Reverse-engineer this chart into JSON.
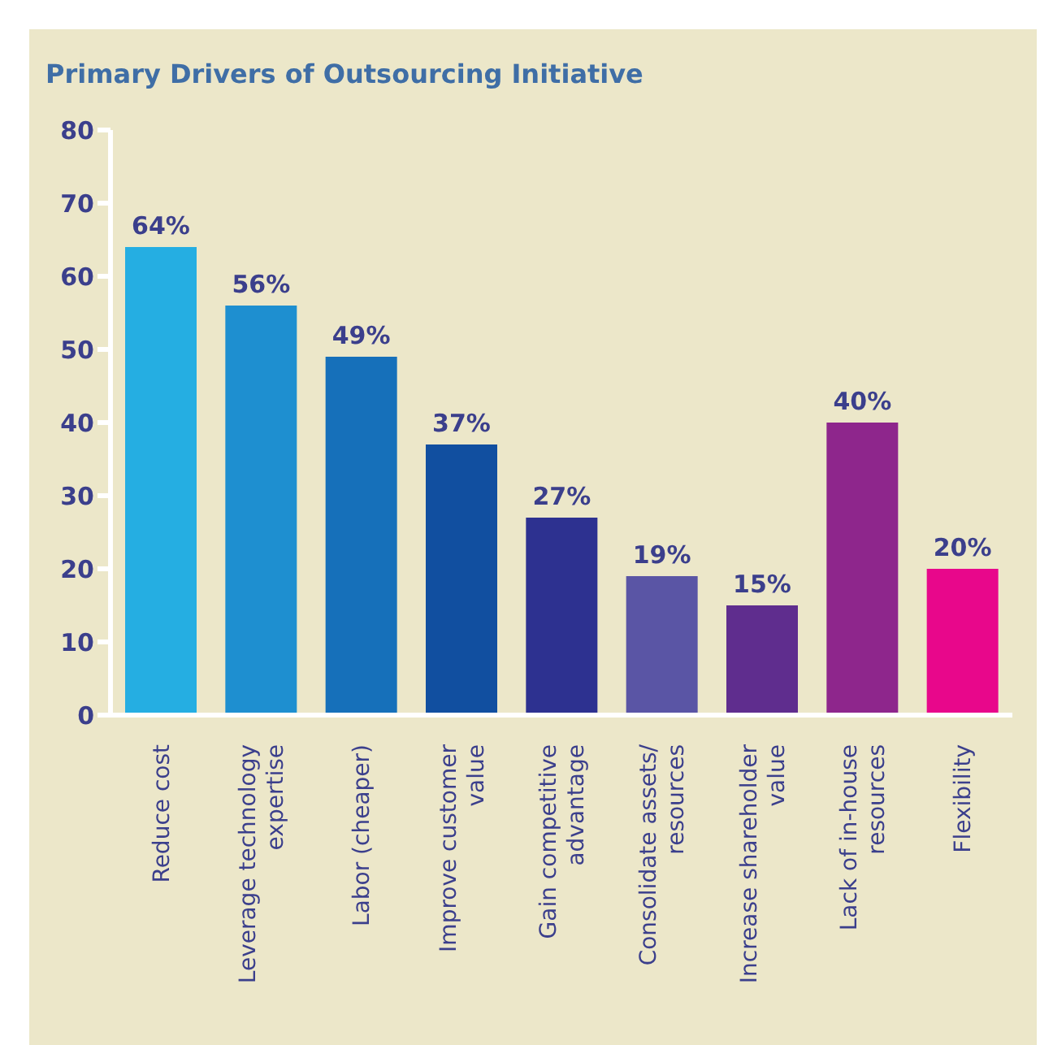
{
  "chart_data": {
    "type": "bar",
    "title": "Primary Drivers of Outsourcing Initiative",
    "categories": [
      "Reduce cost",
      "Leverage technology expertise",
      "Labor (cheaper)",
      "Improve customer value",
      "Gain competitive advantage",
      "Consolidate assets/ resources",
      "Increase shareholder value",
      "Lack of in-house resources",
      "Flexibility"
    ],
    "values": [
      64,
      56,
      49,
      37,
      27,
      19,
      15,
      40,
      20
    ],
    "colors": [
      "#25aee2",
      "#1e8fd0",
      "#1670ba",
      "#114fa0",
      "#2d3190",
      "#5a55a5",
      "#5f2d8e",
      "#8e268c",
      "#e8078b"
    ],
    "value_labels": [
      "64%",
      "56%",
      "49%",
      "37%",
      "27%",
      "19%",
      "15%",
      "40%",
      "20%"
    ],
    "ylim": [
      0,
      80
    ],
    "yticks": [
      0,
      10,
      20,
      30,
      40,
      50,
      60,
      70,
      80
    ],
    "grid": false
  }
}
